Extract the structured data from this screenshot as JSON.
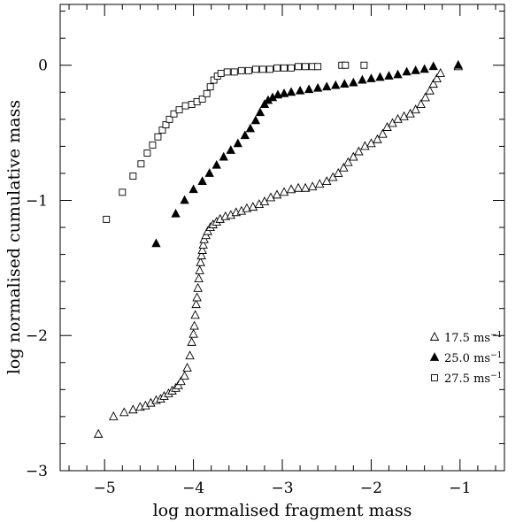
{
  "chart_data": {
    "type": "scatter",
    "title": "",
    "xlabel": "log normalised fragment mass",
    "ylabel": "log normalised cumulative mass",
    "xlim": [
      -5.5,
      -0.5
    ],
    "ylim": [
      -3.0,
      0.45
    ],
    "x_ticks": [
      -5,
      -4,
      -3,
      -2,
      -1
    ],
    "x_tick_labels": [
      "−5",
      "−4",
      "−3",
      "−2",
      "−1"
    ],
    "y_ticks": [
      -3,
      -2,
      -1,
      0
    ],
    "y_tick_labels": [
      "−3",
      "−2",
      "−1",
      "0"
    ],
    "legend_position": "bottom-right",
    "series": [
      {
        "name": "17.5 ms",
        "unit_exp": "−1",
        "marker": "open-triangle",
        "points": [
          [
            -5.07,
            -2.73
          ],
          [
            -4.9,
            -2.6
          ],
          [
            -4.78,
            -2.57
          ],
          [
            -4.68,
            -2.55
          ],
          [
            -4.6,
            -2.53
          ],
          [
            -4.54,
            -2.52
          ],
          [
            -4.48,
            -2.5
          ],
          [
            -4.42,
            -2.48
          ],
          [
            -4.37,
            -2.47
          ],
          [
            -4.33,
            -2.45
          ],
          [
            -4.28,
            -2.43
          ],
          [
            -4.24,
            -2.41
          ],
          [
            -4.2,
            -2.39
          ],
          [
            -4.17,
            -2.37
          ],
          [
            -4.14,
            -2.34
          ],
          [
            -4.1,
            -2.3
          ],
          [
            -4.07,
            -2.24
          ],
          [
            -4.04,
            -2.15
          ],
          [
            -4.02,
            -2.05
          ],
          [
            -4.0,
            -1.99
          ],
          [
            -3.99,
            -1.93
          ],
          [
            -3.98,
            -1.85
          ],
          [
            -3.97,
            -1.77
          ],
          [
            -3.96,
            -1.72
          ],
          [
            -3.95,
            -1.65
          ],
          [
            -3.94,
            -1.58
          ],
          [
            -3.93,
            -1.52
          ],
          [
            -3.92,
            -1.46
          ],
          [
            -3.91,
            -1.41
          ],
          [
            -3.9,
            -1.37
          ],
          [
            -3.89,
            -1.33
          ],
          [
            -3.88,
            -1.29
          ],
          [
            -3.86,
            -1.26
          ],
          [
            -3.84,
            -1.23
          ],
          [
            -3.81,
            -1.2
          ],
          [
            -3.78,
            -1.18
          ],
          [
            -3.74,
            -1.16
          ],
          [
            -3.7,
            -1.14
          ],
          [
            -3.64,
            -1.12
          ],
          [
            -3.58,
            -1.11
          ],
          [
            -3.52,
            -1.09
          ],
          [
            -3.46,
            -1.08
          ],
          [
            -3.4,
            -1.06
          ],
          [
            -3.33,
            -1.05
          ],
          [
            -3.26,
            -1.03
          ],
          [
            -3.2,
            -1.01
          ],
          [
            -3.13,
            -0.98
          ],
          [
            -3.06,
            -0.96
          ],
          [
            -2.98,
            -0.94
          ],
          [
            -2.9,
            -0.92
          ],
          [
            -2.82,
            -0.91
          ],
          [
            -2.74,
            -0.91
          ],
          [
            -2.66,
            -0.9
          ],
          [
            -2.58,
            -0.88
          ],
          [
            -2.5,
            -0.86
          ],
          [
            -2.43,
            -0.83
          ],
          [
            -2.37,
            -0.8
          ],
          [
            -2.31,
            -0.76
          ],
          [
            -2.26,
            -0.72
          ],
          [
            -2.2,
            -0.68
          ],
          [
            -2.14,
            -0.64
          ],
          [
            -2.07,
            -0.6
          ],
          [
            -2.0,
            -0.58
          ],
          [
            -1.93,
            -0.55
          ],
          [
            -1.87,
            -0.51
          ],
          [
            -1.82,
            -0.46
          ],
          [
            -1.76,
            -0.43
          ],
          [
            -1.7,
            -0.4
          ],
          [
            -1.63,
            -0.38
          ],
          [
            -1.56,
            -0.36
          ],
          [
            -1.5,
            -0.33
          ],
          [
            -1.44,
            -0.29
          ],
          [
            -1.39,
            -0.24
          ],
          [
            -1.34,
            -0.19
          ],
          [
            -1.3,
            -0.14
          ],
          [
            -1.26,
            -0.1
          ],
          [
            -1.22,
            -0.06
          ],
          [
            -1.02,
            -0.01
          ]
        ]
      },
      {
        "name": "25.0 ms",
        "unit_exp": "−1",
        "marker": "filled-triangle",
        "points": [
          [
            -4.42,
            -1.32
          ],
          [
            -4.2,
            -1.1
          ],
          [
            -4.1,
            -1.0
          ],
          [
            -4.0,
            -0.92
          ],
          [
            -3.9,
            -0.86
          ],
          [
            -3.82,
            -0.8
          ],
          [
            -3.74,
            -0.74
          ],
          [
            -3.66,
            -0.68
          ],
          [
            -3.58,
            -0.63
          ],
          [
            -3.5,
            -0.58
          ],
          [
            -3.42,
            -0.52
          ],
          [
            -3.36,
            -0.47
          ],
          [
            -3.3,
            -0.41
          ],
          [
            -3.25,
            -0.35
          ],
          [
            -3.2,
            -0.29
          ],
          [
            -3.16,
            -0.26
          ],
          [
            -3.11,
            -0.24
          ],
          [
            -3.05,
            -0.22
          ],
          [
            -2.98,
            -0.21
          ],
          [
            -2.9,
            -0.2
          ],
          [
            -2.8,
            -0.19
          ],
          [
            -2.7,
            -0.18
          ],
          [
            -2.6,
            -0.17
          ],
          [
            -2.5,
            -0.16
          ],
          [
            -2.4,
            -0.15
          ],
          [
            -2.3,
            -0.14
          ],
          [
            -2.2,
            -0.13
          ],
          [
            -2.1,
            -0.11
          ],
          [
            -2.0,
            -0.1
          ],
          [
            -1.9,
            -0.09
          ],
          [
            -1.8,
            -0.08
          ],
          [
            -1.7,
            -0.07
          ],
          [
            -1.6,
            -0.05
          ],
          [
            -1.5,
            -0.04
          ],
          [
            -1.4,
            -0.03
          ],
          [
            -1.3,
            -0.01
          ],
          [
            -1.02,
            0.0
          ]
        ]
      },
      {
        "name": "27.5 ms",
        "unit_exp": "−1",
        "marker": "open-square",
        "points": [
          [
            -4.98,
            -1.14
          ],
          [
            -4.8,
            -0.94
          ],
          [
            -4.68,
            -0.82
          ],
          [
            -4.59,
            -0.73
          ],
          [
            -4.52,
            -0.65
          ],
          [
            -4.46,
            -0.59
          ],
          [
            -4.4,
            -0.53
          ],
          [
            -4.35,
            -0.48
          ],
          [
            -4.31,
            -0.44
          ],
          [
            -4.27,
            -0.4
          ],
          [
            -4.22,
            -0.36
          ],
          [
            -4.16,
            -0.33
          ],
          [
            -4.09,
            -0.3
          ],
          [
            -4.02,
            -0.29
          ],
          [
            -3.96,
            -0.27
          ],
          [
            -3.9,
            -0.25
          ],
          [
            -3.85,
            -0.21
          ],
          [
            -3.81,
            -0.16
          ],
          [
            -3.77,
            -0.11
          ],
          [
            -3.73,
            -0.08
          ],
          [
            -3.69,
            -0.06
          ],
          [
            -3.62,
            -0.05
          ],
          [
            -3.54,
            -0.05
          ],
          [
            -3.46,
            -0.04
          ],
          [
            -3.38,
            -0.04
          ],
          [
            -3.3,
            -0.03
          ],
          [
            -3.22,
            -0.03
          ],
          [
            -3.14,
            -0.03
          ],
          [
            -3.06,
            -0.02
          ],
          [
            -2.98,
            -0.02
          ],
          [
            -2.9,
            -0.02
          ],
          [
            -2.82,
            -0.01
          ],
          [
            -2.74,
            -0.01
          ],
          [
            -2.66,
            -0.01
          ],
          [
            -2.6,
            -0.01
          ],
          [
            -2.33,
            0.0
          ],
          [
            -2.29,
            0.0
          ],
          [
            -2.08,
            0.0
          ]
        ]
      }
    ]
  }
}
